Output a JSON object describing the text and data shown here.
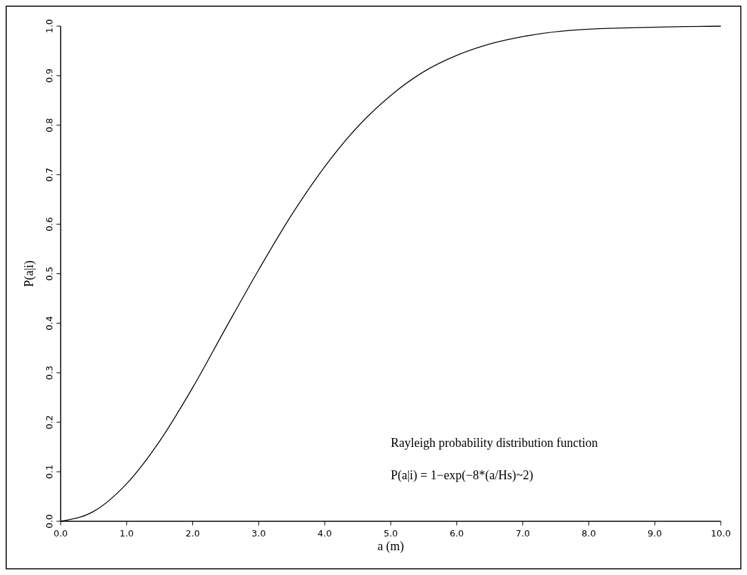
{
  "chart_data": {
    "type": "line",
    "xlabel": "a (m)",
    "ylabel": "P(a|i)",
    "x": [
      0,
      0.5,
      1,
      1.5,
      2,
      2.5,
      3,
      3.5,
      4,
      4.5,
      5,
      5.5,
      6,
      6.5,
      7,
      8,
      10
    ],
    "series": [
      {
        "color": "#000000",
        "values": [
          0,
          0.02,
          0.076,
          0.162,
          0.27,
          0.39,
          0.508,
          0.619,
          0.716,
          0.797,
          0.86,
          0.908,
          0.941,
          0.964,
          0.979,
          0.994,
          1
        ]
      }
    ],
    "xlim": [
      0,
      10
    ],
    "ylim": [
      0,
      1
    ],
    "xticks": [
      {
        "value": 0,
        "label": "0.0"
      },
      {
        "value": 1,
        "label": "1.0"
      },
      {
        "value": 2,
        "label": "2.0"
      },
      {
        "value": 3,
        "label": "3.0"
      },
      {
        "value": 4,
        "label": "4.0"
      },
      {
        "value": 5,
        "label": "5.0"
      },
      {
        "value": 6,
        "label": "6.0"
      },
      {
        "value": 7,
        "label": "7.0"
      },
      {
        "value": 8,
        "label": "8.0"
      },
      {
        "value": 9,
        "label": "9.0"
      },
      {
        "value": 10,
        "label": "10.0"
      }
    ],
    "yticks": [
      {
        "value": 0,
        "label": "0.0"
      },
      0.1,
      0.2,
      0.3,
      0.4,
      0.5,
      0.6,
      0.7,
      0.8,
      0.9,
      {
        "value": 1,
        "label": "1.0"
      }
    ],
    "annotations": [
      "Rayleigh probability distribution function",
      "P(a|i) = 1−exp(−8*(a/Hs)~2)"
    ],
    "grid": false,
    "marker": "none",
    "line_style": "solid"
  }
}
